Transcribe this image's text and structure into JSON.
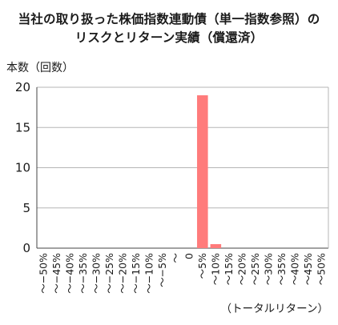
{
  "chart_data": {
    "type": "bar",
    "title_line1": "当社の取り扱った株価指数連動債（単一指数参照）の",
    "title_line2": "リスクとリターン実績（償還済）",
    "ylabel": "本数（回数）",
    "xlabel": "（トータルリターン）",
    "ylim": [
      0,
      20
    ],
    "yticks": [
      0,
      5,
      10,
      15,
      20
    ],
    "grid": true,
    "bar_color": "#ff7b7b",
    "categories": [
      "〜−50%",
      "〜−45%",
      "〜−40%",
      "〜−35%",
      "〜−30%",
      "〜−25%",
      "〜−20%",
      "〜−15%",
      "〜−10%",
      "〜−5%",
      "〜",
      "0",
      "〜5%",
      "〜10%",
      "〜15%",
      "〜20%",
      "〜25%",
      "〜30%",
      "〜35%",
      "〜40%",
      "〜45%",
      "〜50%"
    ],
    "values": [
      0,
      0,
      0,
      0,
      0,
      0,
      0,
      0,
      0,
      0,
      0,
      0,
      19,
      0.5,
      0,
      0,
      0,
      0,
      0,
      0,
      0,
      0
    ]
  }
}
